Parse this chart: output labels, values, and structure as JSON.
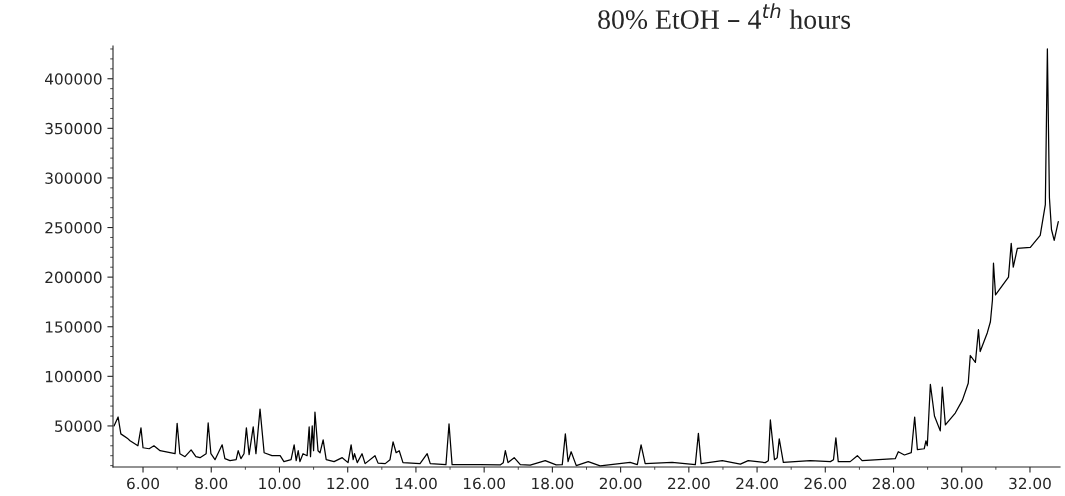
{
  "chart_data": {
    "type": "line",
    "title": "80% EtOH – 4$^{th}$ hours",
    "series": [
      {
        "color": "#000000",
        "x": [
          5.15,
          5.27,
          5.35,
          5.56,
          5.62,
          5.85,
          5.94,
          6.0,
          6.18,
          6.32,
          6.5,
          6.94,
          7.0,
          7.08,
          7.23,
          7.41,
          7.55,
          7.67,
          7.85,
          7.91,
          7.99,
          8.11,
          8.32,
          8.4,
          8.55,
          8.73,
          8.79,
          8.87,
          8.96,
          9.03,
          9.11,
          9.23,
          9.31,
          9.43,
          9.55,
          9.78,
          10.02,
          10.13,
          10.34,
          10.43,
          10.49,
          10.55,
          10.6,
          10.69,
          10.81,
          10.87,
          10.91,
          10.96,
          11.0,
          11.04,
          11.13,
          11.19,
          11.28,
          11.37,
          11.6,
          11.84,
          12.01,
          12.1,
          12.16,
          12.2,
          12.28,
          12.42,
          12.51,
          12.8,
          12.89,
          13.1,
          13.24,
          13.33,
          13.42,
          13.51,
          13.62,
          14.12,
          14.33,
          14.42,
          14.88,
          14.97,
          15.06,
          15.88,
          16.47,
          16.56,
          16.62,
          16.7,
          16.88,
          17.06,
          17.35,
          17.79,
          18.11,
          18.29,
          18.38,
          18.46,
          18.55,
          18.7,
          19.05,
          19.4,
          20.28,
          20.49,
          20.6,
          20.72,
          21.51,
          22.19,
          22.28,
          22.36,
          22.98,
          23.51,
          23.74,
          24.24,
          24.33,
          24.39,
          24.51,
          24.59,
          24.65,
          24.77,
          25.56,
          26.15,
          26.24,
          26.31,
          26.38,
          26.73,
          26.94,
          27.08,
          28.05,
          28.14,
          28.32,
          28.52,
          28.62,
          28.7,
          28.9,
          28.95,
          28.99,
          29.08,
          29.2,
          29.37,
          29.43,
          29.52,
          29.81,
          30.02,
          30.19,
          30.25,
          30.4,
          30.49,
          30.54,
          30.75,
          30.84,
          30.9,
          30.93,
          30.99,
          31.37,
          31.45,
          31.51,
          31.63,
          32.01,
          32.3,
          32.45,
          32.51,
          32.57,
          32.63,
          32.71,
          32.83
        ],
        "values": [
          50000,
          59000,
          42000,
          37000,
          35000,
          30000,
          48000,
          28000,
          27000,
          30000,
          25000,
          22000,
          52600,
          22000,
          19000,
          25800,
          19000,
          18000,
          22000,
          53000,
          22000,
          16000,
          31000,
          17000,
          15000,
          16000,
          25000,
          17000,
          22000,
          48000,
          21000,
          49000,
          22000,
          67000,
          23000,
          20000,
          20000,
          14000,
          16000,
          31000,
          15000,
          25000,
          14000,
          22000,
          20000,
          49000,
          19000,
          50000,
          25000,
          64000,
          25000,
          23000,
          36000,
          16000,
          14000,
          18000,
          13000,
          31000,
          16000,
          22000,
          13000,
          22000,
          12000,
          20000,
          12500,
          12000,
          16000,
          34000,
          23000,
          25000,
          13000,
          12000,
          22000,
          12000,
          11000,
          52000,
          11000,
          11000,
          10700,
          13000,
          25000,
          13000,
          18000,
          11000,
          10500,
          15000,
          10700,
          11000,
          42000,
          14000,
          24000,
          10000,
          14000,
          9700,
          13300,
          11000,
          31000,
          12000,
          13300,
          11000,
          42500,
          12000,
          15000,
          11500,
          15000,
          13000,
          15000,
          56000,
          16000,
          18000,
          37000,
          13300,
          15000,
          14000,
          16000,
          38000,
          14000,
          14000,
          20000,
          15000,
          17000,
          24000,
          20700,
          23000,
          59000,
          26000,
          27000,
          35000,
          30000,
          92000,
          60000,
          45000,
          89000,
          51000,
          63000,
          76000,
          93000,
          121000,
          114000,
          147000,
          125000,
          144000,
          155000,
          177000,
          214000,
          182000,
          200000,
          234000,
          210000,
          229000,
          230000,
          242000,
          273000,
          430000,
          280000,
          248000,
          237000,
          256000
        ]
      }
    ],
    "xlim": [
      5.12,
      32.88
    ],
    "xticks": [
      {
        "value": 6,
        "label": "6.00"
      },
      {
        "value": 8,
        "label": "8.00"
      },
      {
        "value": 10,
        "label": "10.00"
      },
      {
        "value": 12,
        "label": "12.00"
      },
      {
        "value": 14,
        "label": "14.00"
      },
      {
        "value": 16,
        "label": "16.00"
      },
      {
        "value": 18,
        "label": "18.00"
      },
      {
        "value": 20,
        "label": "20.00"
      },
      {
        "value": 22,
        "label": "22.00"
      },
      {
        "value": 24,
        "label": "24.00"
      },
      {
        "value": 26,
        "label": "26.00"
      },
      {
        "value": 28,
        "label": "28.00"
      },
      {
        "value": 30,
        "label": "30.00"
      },
      {
        "value": 32,
        "label": "32.00"
      }
    ],
    "ylim": [
      8600,
      433000
    ],
    "yticks": [
      50000,
      100000,
      150000,
      200000,
      250000,
      300000,
      350000,
      400000
    ],
    "grid": false,
    "legend": false,
    "marker": "none",
    "line_style": "solid"
  }
}
